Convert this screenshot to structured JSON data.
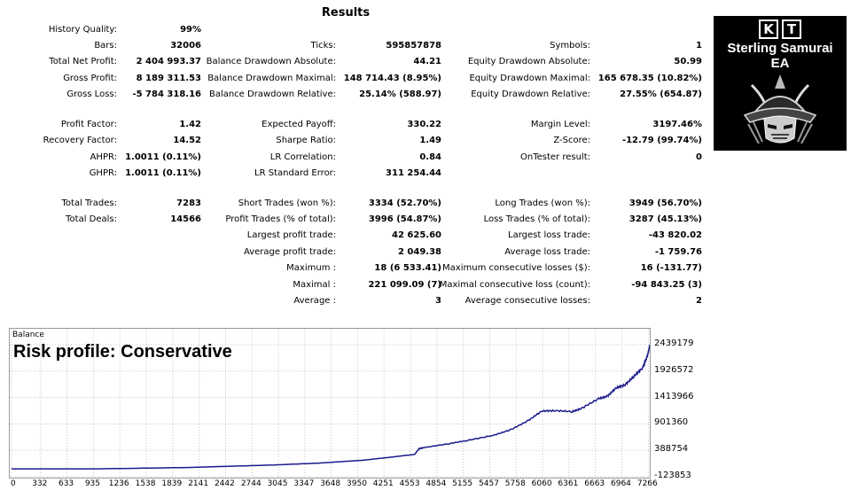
{
  "report": {
    "title": "Results",
    "rows": [
      {
        "items": [
          {
            "label": "History Quality:",
            "value": "99%"
          }
        ]
      },
      {
        "items": [
          {
            "label": "Bars:",
            "value": "32006"
          },
          {
            "label": "Ticks:",
            "value": "595857878"
          },
          {
            "label": "Symbols:",
            "value": "1"
          }
        ]
      },
      {
        "items": [
          {
            "label": "Total Net Profit:",
            "value": "2 404 993.37"
          },
          {
            "label": "Balance Drawdown Absolute:",
            "value": "44.21"
          },
          {
            "label": "Equity Drawdown Absolute:",
            "value": "50.99"
          }
        ]
      },
      {
        "items": [
          {
            "label": "Gross Profit:",
            "value": "8 189 311.53"
          },
          {
            "label": "Balance Drawdown Maximal:",
            "value": "148 714.43 (8.95%)"
          },
          {
            "label": "Equity Drawdown Maximal:",
            "value": "165 678.35 (10.82%)"
          }
        ]
      },
      {
        "items": [
          {
            "label": "Gross Loss:",
            "value": "-5 784 318.16"
          },
          {
            "label": "Balance Drawdown Relative:",
            "value": "25.14% (588.97)"
          },
          {
            "label": "Equity Drawdown Relative:",
            "value": "27.55% (654.87)"
          }
        ]
      },
      {
        "items": [
          {
            "label": "Profit Factor:",
            "value": "1.42"
          },
          {
            "label": "Expected Payoff:",
            "value": "330.22"
          },
          {
            "label": "Margin Level:",
            "value": "3197.46%"
          }
        ]
      },
      {
        "items": [
          {
            "label": "Recovery Factor:",
            "value": "14.52"
          },
          {
            "label": "Sharpe Ratio:",
            "value": "1.49"
          },
          {
            "label": "Z-Score:",
            "value": "-12.79 (99.74%)"
          }
        ]
      },
      {
        "items": [
          {
            "label": "AHPR:",
            "value": "1.0011 (0.11%)"
          },
          {
            "label": "LR Correlation:",
            "value": "0.84"
          },
          {
            "label": "OnTester result:",
            "value": "0"
          }
        ]
      },
      {
        "items": [
          {
            "label": "GHPR:",
            "value": "1.0011 (0.11%)"
          },
          {
            "label": "LR Standard Error:",
            "value": "311 254.44"
          }
        ]
      },
      {
        "items": [
          {
            "label": "Total Trades:",
            "value": "7283"
          },
          {
            "label": "Short Trades (won %):",
            "value": "3334 (52.70%)"
          },
          {
            "label": "Long Trades (won %):",
            "value": "3949 (56.70%)"
          }
        ]
      },
      {
        "items": [
          {
            "label": "Total Deals:",
            "value": "14566"
          },
          {
            "label": "Profit Trades (% of total):",
            "value": "3996 (54.87%)"
          },
          {
            "label": "Loss Trades (% of total):",
            "value": "3287 (45.13%)"
          }
        ]
      },
      {
        "items": [
          {
            "label": "Largest profit trade:",
            "value": "42 625.60"
          },
          {
            "label": "Largest loss trade:",
            "value": "-43 820.02"
          }
        ]
      },
      {
        "items": [
          {
            "label": "Average profit trade:",
            "value": "2 049.38"
          },
          {
            "label": "Average loss trade:",
            "value": "-1 759.76"
          }
        ]
      },
      {
        "items": [
          {
            "label": "Maximum :",
            "value": "18 (6 533.41)"
          },
          {
            "label": "Maximum consecutive losses ($):",
            "value": "16 (-131.77)"
          }
        ]
      },
      {
        "items": [
          {
            "label": "Maximal :",
            "value": "221 099.09 (7)"
          },
          {
            "label": "Maximal consecutive loss (count):",
            "value": "-94 843.25 (3)"
          }
        ]
      },
      {
        "items": [
          {
            "label": "Average :",
            "value": "3"
          },
          {
            "label": "Average consecutive losses:",
            "value": "2"
          }
        ]
      }
    ]
  },
  "logo": {
    "letters": [
      "K",
      "T"
    ],
    "name_line1": "Sterling Samurai",
    "name_line2": "EA"
  },
  "colors": {
    "balance_line": "#1a1a8c",
    "grid": "#c8c8c8",
    "logo_bg": "#000000"
  },
  "chart_data": {
    "type": "line",
    "title": "Balance",
    "annotation": "Risk profile: Conservative",
    "x_ticks": [
      "0",
      "332",
      "633",
      "935",
      "1236",
      "1538",
      "1839",
      "2141",
      "2442",
      "2744",
      "3045",
      "3347",
      "3648",
      "3950",
      "4251",
      "4553",
      "4854",
      "5155",
      "5457",
      "5758",
      "6060",
      "6361",
      "6663",
      "6964",
      "7266"
    ],
    "y_ticks": [
      "2439179",
      "1926572",
      "1413966",
      "901360",
      "388754",
      "-123853"
    ],
    "xlim": [
      0,
      7283
    ],
    "ylim": [
      -123853,
      2439179
    ],
    "grid": true,
    "series": [
      {
        "x": [
          0,
          1000,
          2000,
          3000,
          3500,
          4000,
          4300,
          4500,
          4600,
          4650,
          4700,
          5000,
          5200,
          5500,
          5700,
          5900,
          6050,
          6200,
          6400,
          6500,
          6700,
          6800,
          6900,
          7000,
          7100,
          7200,
          7250,
          7283
        ],
        "y": [
          30000,
          30000,
          55000,
          105000,
          140000,
          195000,
          250000,
          290000,
          310000,
          420000,
          440000,
          520000,
          580000,
          680000,
          790000,
          970000,
          1150000,
          1160000,
          1140000,
          1200000,
          1390000,
          1440000,
          1600000,
          1660000,
          1820000,
          1990000,
          2190000,
          2404993
        ]
      }
    ]
  }
}
